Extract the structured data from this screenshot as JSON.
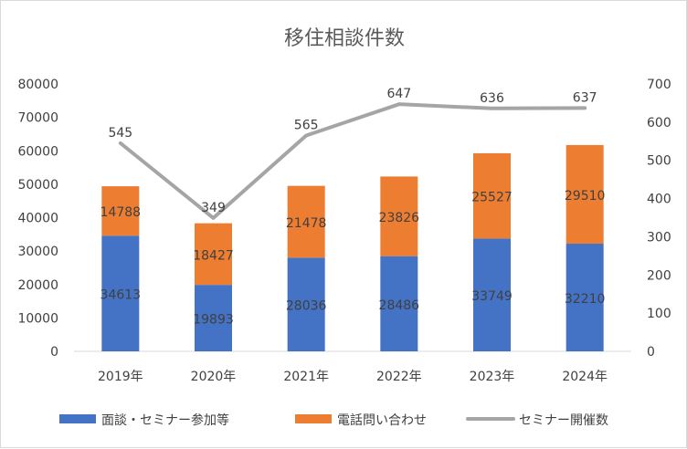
{
  "chart_data": {
    "type": "bar",
    "title": "移住相談件数",
    "categories": [
      "2019年",
      "2020年",
      "2021年",
      "2022年",
      "2023年",
      "2024年"
    ],
    "series": [
      {
        "name": "面談・セミナー参加等",
        "type": "bar",
        "stack": "total",
        "axis": "left",
        "color": "#4472c4",
        "values": [
          34613,
          19893,
          28036,
          28486,
          33749,
          32210
        ]
      },
      {
        "name": "電話問い合わせ",
        "type": "bar",
        "stack": "total",
        "axis": "left",
        "color": "#ed7d31",
        "values": [
          14788,
          18427,
          21478,
          23826,
          25527,
          29510
        ]
      },
      {
        "name": "セミナー開催数",
        "type": "line",
        "axis": "right",
        "color": "#a5a5a5",
        "values": [
          545,
          349,
          565,
          647,
          636,
          637
        ]
      }
    ],
    "y_left": {
      "min": 0,
      "max": 80000,
      "step": 10000
    },
    "y_right": {
      "min": 0,
      "max": 700,
      "step": 100
    },
    "grid": false,
    "legend": "bottom"
  }
}
